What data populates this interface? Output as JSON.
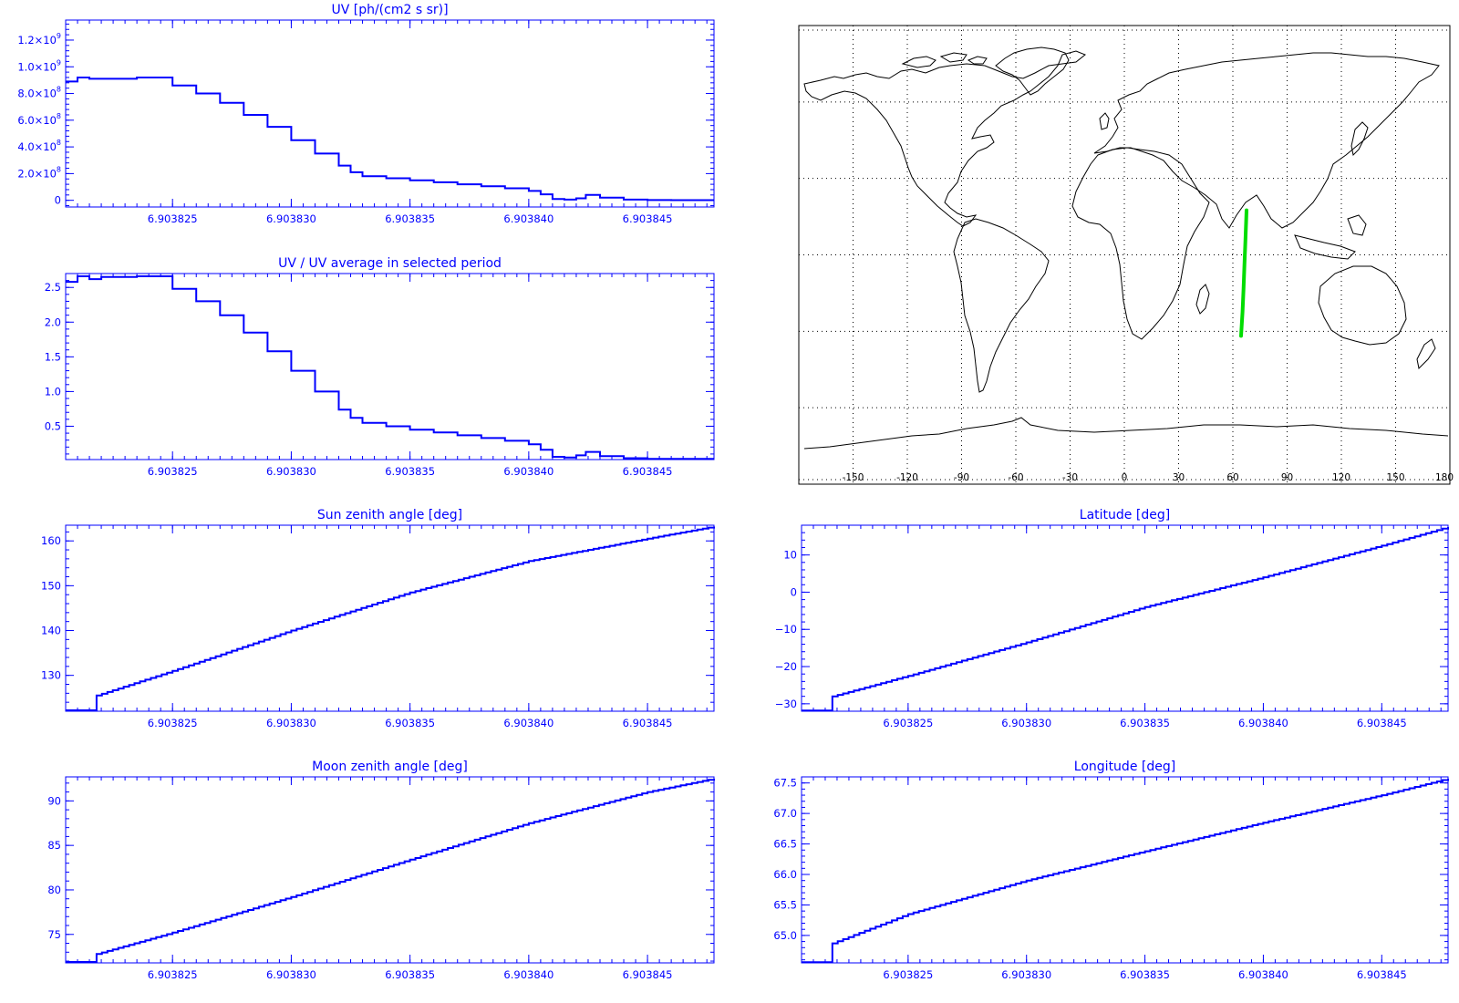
{
  "chart_data": [
    {
      "id": "uv",
      "type": "line",
      "title": "UV [ph/(cm2 s sr)]",
      "xlim": [
        6.9038205,
        6.9038478
      ],
      "ylim": [
        -50000000,
        1350000000
      ],
      "xticks": [
        6.903825,
        6.90383,
        6.903835,
        6.90384,
        6.903845
      ],
      "xtick_labels": [
        "6.903825",
        "6.903830",
        "6.903835",
        "6.903840",
        "6.903845"
      ],
      "yticks": [
        0,
        200000000,
        400000000,
        600000000,
        800000000,
        1000000000,
        1200000000
      ],
      "ytick_base": [
        "0",
        "2.0×10",
        "4.0×10",
        "6.0×10",
        "8.0×10",
        "1.0×10",
        "1.2×10"
      ],
      "ytick_exp": [
        "",
        "8",
        "8",
        "8",
        "8",
        "9",
        "9"
      ],
      "ylabel": "",
      "xlabel": "",
      "x": [
        6.9038205,
        6.903821,
        6.9038215,
        6.903822,
        6.9038235,
        6.903825,
        6.903826,
        6.903827,
        6.903828,
        6.903829,
        6.90383,
        6.903831,
        6.903832,
        6.9038325,
        6.903833,
        6.903834,
        6.903835,
        6.903836,
        6.903837,
        6.903838,
        6.903839,
        6.90384,
        6.9038405,
        6.903841,
        6.9038415,
        6.903842,
        6.9038424,
        6.903843,
        6.903844,
        6.903845,
        6.903846,
        6.903847,
        6.9038478
      ],
      "y": [
        890000000,
        920000000,
        910000000,
        910000000,
        920000000,
        860000000,
        800000000,
        730000000,
        640000000,
        550000000,
        450000000,
        350000000,
        260000000,
        210000000,
        180000000,
        165000000,
        150000000,
        135000000,
        120000000,
        105000000,
        90000000,
        70000000,
        45000000,
        10000000,
        5000000,
        15000000,
        40000000,
        20000000,
        5000000,
        2000000,
        1000000,
        1000000,
        1000000
      ]
    },
    {
      "id": "ratio",
      "type": "line",
      "title": "UV / UV average in selected period",
      "xlim": [
        6.9038205,
        6.9038478
      ],
      "ylim": [
        0.02,
        2.7
      ],
      "xticks": [
        6.903825,
        6.90383,
        6.903835,
        6.90384,
        6.903845
      ],
      "xtick_labels": [
        "6.903825",
        "6.903830",
        "6.903835",
        "6.903840",
        "6.903845"
      ],
      "yticks": [
        0.5,
        1.0,
        1.5,
        2.0,
        2.5
      ],
      "ytick_base": [
        "0.5",
        "1.0",
        "1.5",
        "2.0",
        "2.5"
      ],
      "ylabel": "",
      "xlabel": "",
      "x": [
        6.9038205,
        6.903821,
        6.9038215,
        6.903822,
        6.9038235,
        6.903825,
        6.903826,
        6.903827,
        6.903828,
        6.903829,
        6.90383,
        6.903831,
        6.903832,
        6.9038325,
        6.903833,
        6.903834,
        6.903835,
        6.903836,
        6.903837,
        6.903838,
        6.903839,
        6.90384,
        6.9038405,
        6.903841,
        6.9038415,
        6.903842,
        6.9038424,
        6.903843,
        6.903844,
        6.903845,
        6.903846,
        6.903847,
        6.9038478
      ],
      "y": [
        2.58,
        2.66,
        2.62,
        2.65,
        2.66,
        2.48,
        2.3,
        2.1,
        1.85,
        1.58,
        1.3,
        1.0,
        0.74,
        0.62,
        0.55,
        0.5,
        0.45,
        0.41,
        0.37,
        0.33,
        0.29,
        0.24,
        0.16,
        0.06,
        0.05,
        0.08,
        0.13,
        0.07,
        0.04,
        0.03,
        0.03,
        0.03,
        0.03
      ]
    },
    {
      "id": "sza",
      "type": "line",
      "title": "Sun zenith angle [deg]",
      "xlim": [
        6.9038205,
        6.9038478
      ],
      "ylim": [
        122,
        163.5
      ],
      "xticks": [
        6.903825,
        6.90383,
        6.903835,
        6.90384,
        6.903845
      ],
      "xtick_labels": [
        "6.903825",
        "6.903830",
        "6.903835",
        "6.903840",
        "6.903845"
      ],
      "yticks": [
        130,
        140,
        150,
        160
      ],
      "ytick_base": [
        "130",
        "140",
        "150",
        "160"
      ],
      "ylabel": "",
      "xlabel": "",
      "x": [
        6.9038205,
        6.903821,
        6.9038217,
        6.9038218,
        6.903825,
        6.90383,
        6.903835,
        6.90384,
        6.903845,
        6.9038478
      ],
      "y": [
        122.2,
        122.2,
        122.2,
        125.5,
        131,
        140,
        148.5,
        155.5,
        160.5,
        163.2
      ]
    },
    {
      "id": "lat",
      "type": "line",
      "title": "Latitude [deg]",
      "xlim": [
        6.9038205,
        6.9038478
      ],
      "ylim": [
        -32,
        18
      ],
      "xticks": [
        6.903825,
        6.90383,
        6.903835,
        6.90384,
        6.903845
      ],
      "xtick_labels": [
        "6.903825",
        "6.903830",
        "6.903835",
        "6.903840",
        "6.903845"
      ],
      "yticks": [
        -30,
        -20,
        -10,
        0,
        10
      ],
      "ytick_base": [
        "−30",
        "−20",
        "−10",
        "0",
        "10"
      ],
      "ylabel": "",
      "xlabel": "",
      "x": [
        6.9038205,
        6.903821,
        6.9038217,
        6.9038218,
        6.903825,
        6.90383,
        6.903835,
        6.90384,
        6.903845,
        6.9038478
      ],
      "y": [
        -31.8,
        -31.8,
        -31.8,
        -28,
        -22.5,
        -13.5,
        -4,
        4,
        12.5,
        17.5
      ]
    },
    {
      "id": "mza",
      "type": "line",
      "title": "Moon zenith angle [deg]",
      "xlim": [
        6.9038205,
        6.9038478
      ],
      "ylim": [
        71.8,
        92.7
      ],
      "xticks": [
        6.903825,
        6.90383,
        6.903835,
        6.90384,
        6.903845
      ],
      "xtick_labels": [
        "6.903825",
        "6.903830",
        "6.903835",
        "6.903840",
        "6.903845"
      ],
      "yticks": [
        75,
        80,
        85,
        90
      ],
      "ytick_base": [
        "75",
        "80",
        "85",
        "90"
      ],
      "ylabel": "",
      "xlabel": "",
      "x": [
        6.9038205,
        6.903821,
        6.9038217,
        6.9038218,
        6.903825,
        6.90383,
        6.903835,
        6.90384,
        6.903845,
        6.9038478
      ],
      "y": [
        71.9,
        71.9,
        71.9,
        72.8,
        75.2,
        79.2,
        83.4,
        87.5,
        91.0,
        92.5
      ]
    },
    {
      "id": "lon",
      "type": "line",
      "title": "Longitude [deg]",
      "xlim": [
        6.9038205,
        6.9038478
      ],
      "ylim": [
        64.55,
        67.6
      ],
      "xticks": [
        6.903825,
        6.90383,
        6.903835,
        6.90384,
        6.903845
      ],
      "xtick_labels": [
        "6.903825",
        "6.903830",
        "6.903835",
        "6.903840",
        "6.903845"
      ],
      "yticks": [
        65.0,
        65.5,
        66.0,
        66.5,
        67.0,
        67.5
      ],
      "ytick_base": [
        "65.0",
        "65.5",
        "66.0",
        "66.5",
        "67.0",
        "67.5"
      ],
      "ylabel": "",
      "xlabel": "",
      "x": [
        6.9038205,
        6.903821,
        6.9038217,
        6.9038218,
        6.903825,
        6.90383,
        6.903835,
        6.90384,
        6.903845,
        6.9038478
      ],
      "y": [
        64.56,
        64.56,
        64.56,
        64.87,
        65.35,
        65.9,
        66.38,
        66.85,
        67.3,
        67.57
      ]
    }
  ],
  "map": {
    "xticks": [
      -150,
      -120,
      -90,
      -60,
      -30,
      0,
      30,
      60,
      90,
      120,
      150,
      180
    ],
    "xtick_labels": [
      "-150",
      "-120",
      "-90",
      "-60",
      "-30",
      "0",
      "30",
      "60",
      "90",
      "120",
      "150",
      "180"
    ],
    "track_color": "#00dd00",
    "track": [
      [
        64.56,
        -31.8
      ],
      [
        65.35,
        -22.5
      ],
      [
        65.9,
        -13.5
      ],
      [
        66.38,
        -4
      ],
      [
        66.85,
        4
      ],
      [
        67.3,
        12.5
      ],
      [
        67.57,
        17.5
      ]
    ]
  }
}
